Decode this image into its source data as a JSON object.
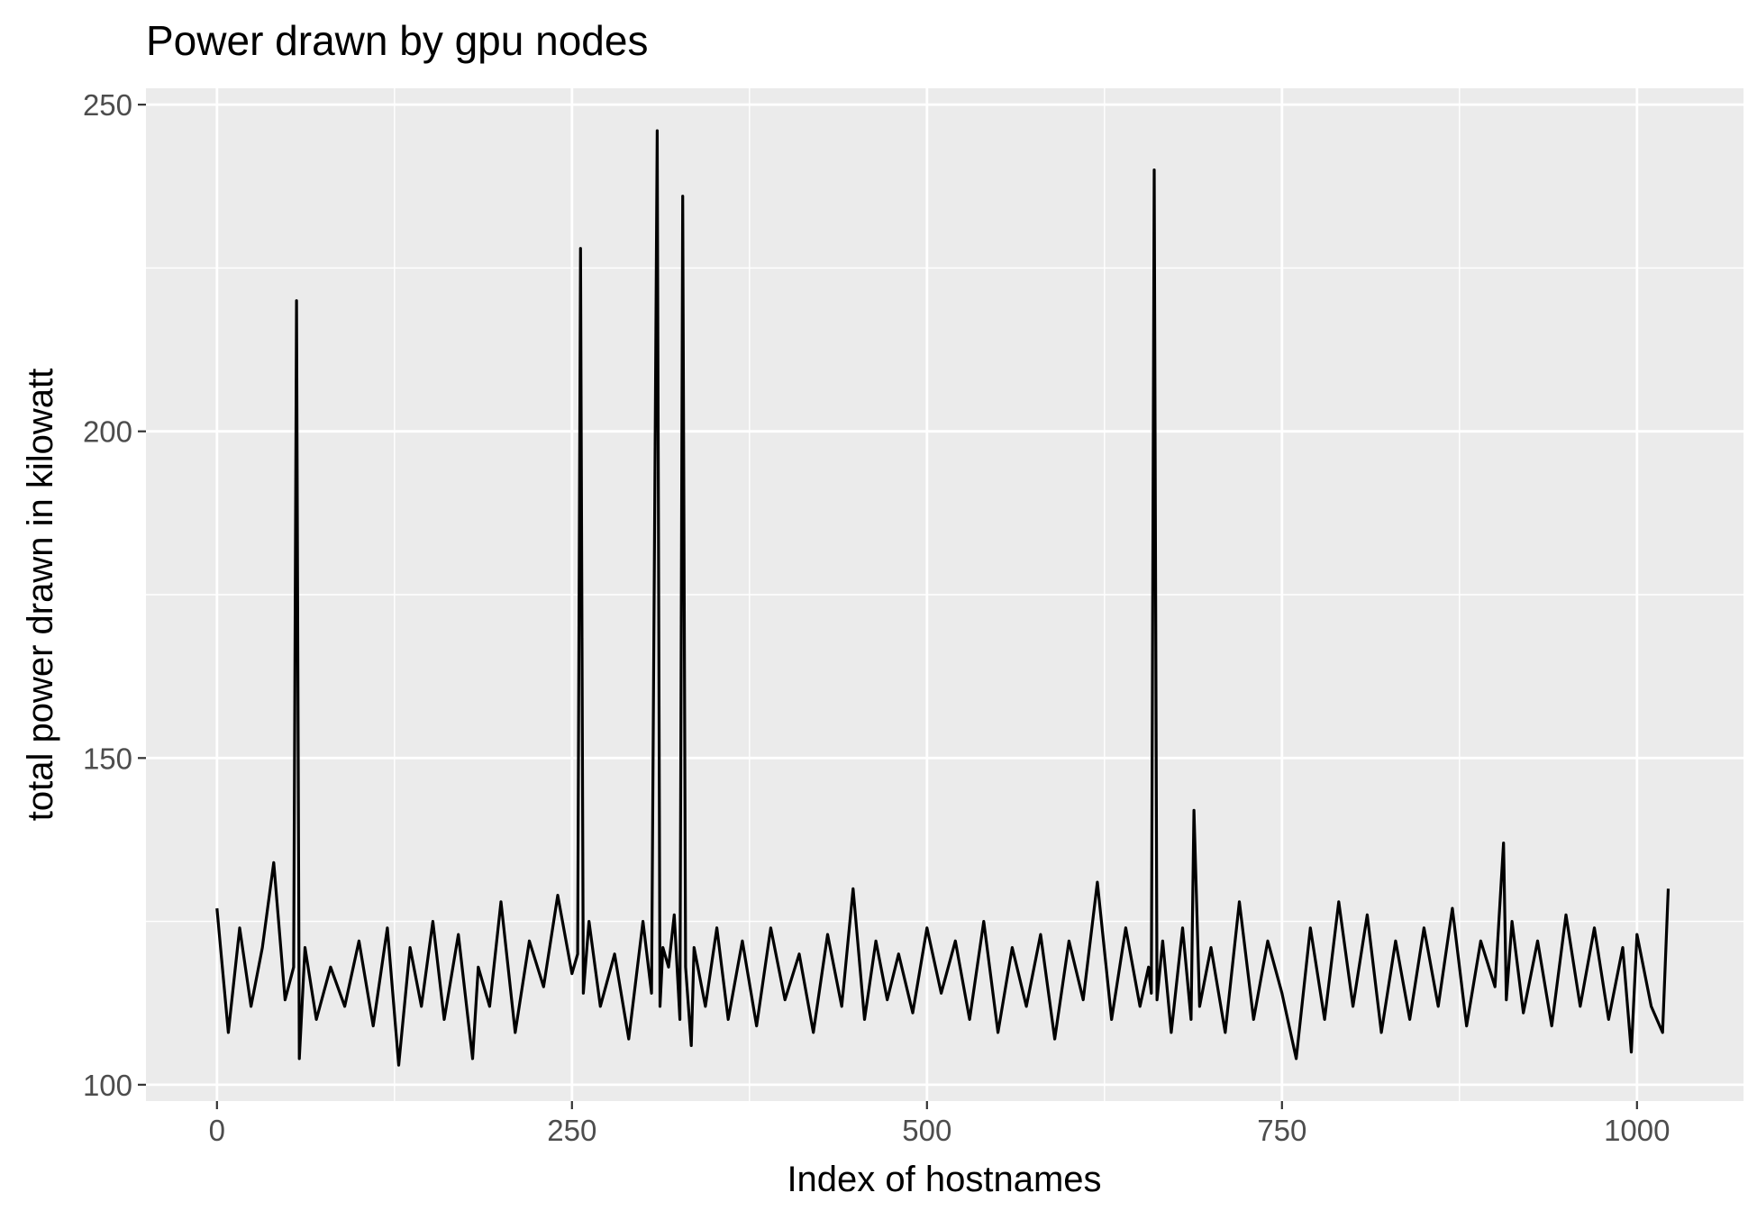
{
  "chart_data": {
    "type": "line",
    "title": "Power drawn by gpu nodes",
    "xlabel": "Index of hostnames",
    "ylabel": "total power drawn in kilowatt",
    "xlim": [
      -50,
      1075
    ],
    "ylim": [
      97.5,
      252.5
    ],
    "x_ticks": [
      0,
      250,
      500,
      750,
      1000
    ],
    "x_tick_labels": [
      "0",
      "250",
      "500",
      "750",
      "1000"
    ],
    "y_ticks": [
      100,
      150,
      200,
      250
    ],
    "y_tick_labels": [
      "100",
      "150",
      "200",
      "250"
    ],
    "grid": true,
    "panel_background": "#EBEBEB",
    "grid_color": "#FFFFFF",
    "line_color": "#000000",
    "series": [
      {
        "x": [
          0,
          8,
          16,
          24,
          32,
          40,
          48,
          54,
          56,
          58,
          62,
          70,
          80,
          90,
          100,
          110,
          120,
          128,
          136,
          144,
          152,
          160,
          170,
          180,
          184,
          192,
          200,
          210,
          220,
          230,
          240,
          250,
          254,
          256,
          258,
          262,
          270,
          280,
          290,
          300,
          306,
          310,
          312,
          314,
          318,
          322,
          326,
          328,
          330,
          334,
          336,
          344,
          352,
          360,
          370,
          380,
          390,
          400,
          410,
          420,
          430,
          440,
          448,
          456,
          464,
          472,
          480,
          490,
          500,
          510,
          520,
          530,
          540,
          550,
          560,
          570,
          580,
          590,
          600,
          610,
          620,
          630,
          640,
          650,
          656,
          658,
          660,
          662,
          666,
          672,
          680,
          686,
          688,
          692,
          700,
          710,
          720,
          730,
          740,
          750,
          760,
          770,
          780,
          790,
          800,
          810,
          820,
          830,
          840,
          850,
          860,
          870,
          880,
          890,
          900,
          906,
          908,
          912,
          920,
          930,
          940,
          950,
          960,
          970,
          980,
          990,
          996,
          1000,
          1010,
          1018,
          1022
        ],
        "y": [
          127,
          108,
          124,
          112,
          121,
          134,
          113,
          118,
          220,
          104,
          121,
          110,
          118,
          112,
          122,
          109,
          124,
          103,
          121,
          112,
          125,
          110,
          123,
          104,
          118,
          112,
          128,
          108,
          122,
          115,
          129,
          117,
          120,
          228,
          114,
          125,
          112,
          120,
          107,
          125,
          114,
          246,
          112,
          121,
          118,
          126,
          110,
          236,
          118,
          106,
          121,
          112,
          124,
          110,
          122,
          109,
          124,
          113,
          120,
          108,
          123,
          112,
          130,
          110,
          122,
          113,
          120,
          111,
          124,
          114,
          122,
          110,
          125,
          108,
          121,
          112,
          123,
          107,
          122,
          113,
          131,
          110,
          124,
          112,
          118,
          114,
          240,
          113,
          122,
          108,
          124,
          110,
          142,
          112,
          121,
          108,
          128,
          110,
          122,
          114,
          104,
          124,
          110,
          128,
          112,
          126,
          108,
          122,
          110,
          124,
          112,
          127,
          109,
          122,
          115,
          137,
          113,
          125,
          111,
          122,
          109,
          126,
          112,
          124,
          110,
          121,
          105,
          123,
          112,
          108,
          130
        ]
      }
    ]
  }
}
